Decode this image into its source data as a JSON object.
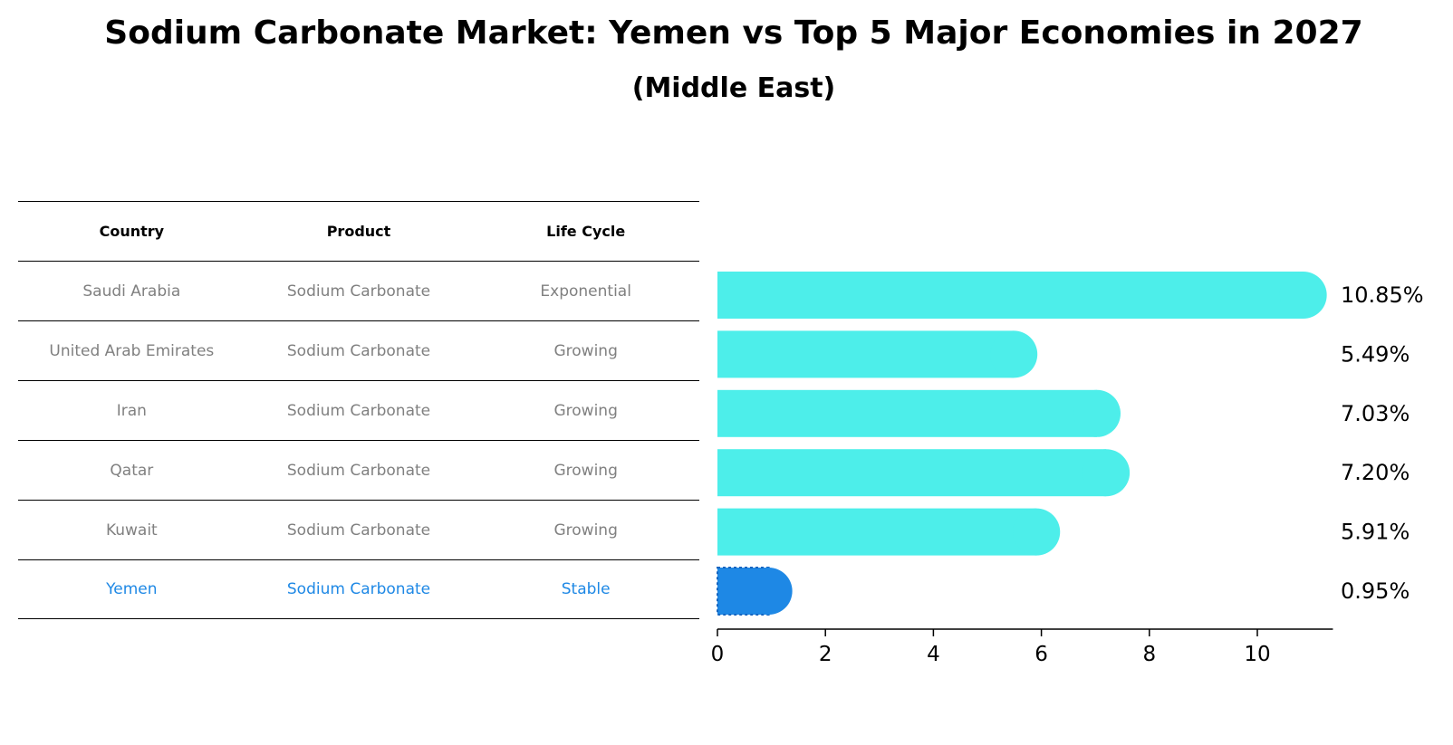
{
  "title": "Sodium Carbonate Market: Yemen vs Top 5 Major Economies in 2027",
  "subtitle": "(Middle East)",
  "table": {
    "headers": [
      "Country",
      "Product",
      "Life Cycle"
    ],
    "rows": [
      [
        "Saudi Arabia",
        "Sodium Carbonate",
        "Exponential"
      ],
      [
        "United Arab Emirates",
        "Sodium Carbonate",
        "Growing"
      ],
      [
        "Iran",
        "Sodium Carbonate",
        "Growing"
      ],
      [
        "Qatar",
        "Sodium Carbonate",
        "Growing"
      ],
      [
        "Kuwait",
        "Sodium Carbonate",
        "Growing"
      ],
      [
        "Yemen",
        "Sodium Carbonate",
        "Stable"
      ]
    ]
  },
  "colors": {
    "bar": "#4deeea",
    "highlight": "#1e88e5",
    "row_text": "#808080"
  },
  "chart_data": {
    "type": "bar",
    "orientation": "horizontal",
    "categories": [
      "Saudi Arabia",
      "United Arab Emirates",
      "Iran",
      "Qatar",
      "Kuwait",
      "Yemen"
    ],
    "values": [
      10.85,
      5.49,
      7.03,
      7.2,
      5.91,
      0.95
    ],
    "data_labels": [
      "10.85%",
      "5.49%",
      "7.03%",
      "7.20%",
      "5.91%",
      "0.95%"
    ],
    "highlight_category": "Yemen",
    "xlim": [
      0,
      11.4
    ],
    "xticks": [
      0,
      2,
      4,
      6,
      8,
      10
    ],
    "grid": false,
    "legend": "none"
  }
}
